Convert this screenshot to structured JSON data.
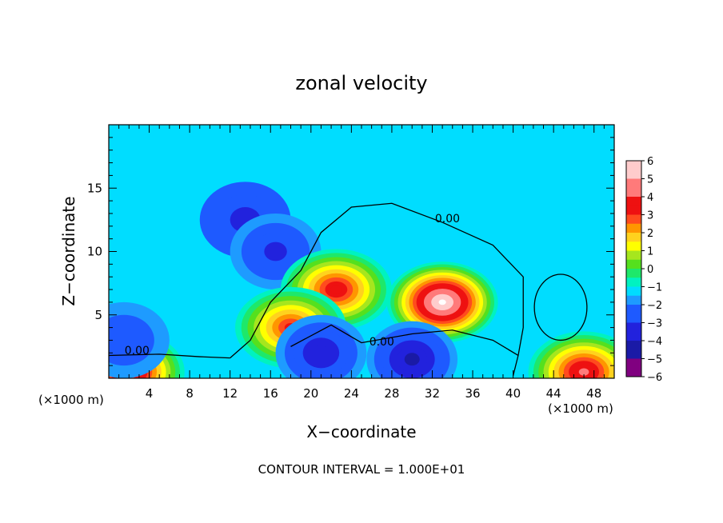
{
  "chart_data": {
    "type": "heatmap",
    "title": "zonal velocity",
    "xlabel": "X−coordinate",
    "ylabel": "Z−coordinate",
    "x_unit_left": "(×1000 m)",
    "x_unit_right": "(×1000 m)",
    "footer": "CONTOUR INTERVAL = 1.000E+01",
    "xlim": [
      0,
      50
    ],
    "ylim": [
      0,
      20
    ],
    "x_ticks": [
      4,
      8,
      12,
      16,
      20,
      24,
      28,
      32,
      36,
      40,
      44,
      48
    ],
    "y_ticks": [
      5,
      10,
      15
    ],
    "colorbar": {
      "vmin": -6,
      "vmax": 6,
      "levels": [
        6,
        5,
        4,
        3,
        2,
        1,
        0,
        -1,
        -2,
        -3,
        -4,
        -5,
        -6
      ],
      "labels": [
        "6",
        "5",
        "4",
        "3",
        "2",
        "1",
        "0",
        "−1",
        "−2",
        "−3",
        "−4",
        "−5",
        "−6"
      ]
    },
    "background_value": -1.5,
    "features": [
      {
        "type": "low",
        "x": 13.5,
        "z": 12.5,
        "value": -3.2
      },
      {
        "type": "low",
        "x": 16.5,
        "z": 10.0,
        "value": -3.5
      },
      {
        "type": "high",
        "x": 22.5,
        "z": 7.0,
        "value": 3.5
      },
      {
        "type": "high",
        "x": 18.0,
        "z": 4.0,
        "value": 3.0
      },
      {
        "type": "high",
        "x": 33.0,
        "z": 6.0,
        "value": 6.0
      },
      {
        "type": "low",
        "x": 30.0,
        "z": 1.5,
        "value": -4.5
      },
      {
        "type": "low",
        "x": 21.0,
        "z": 2.0,
        "value": -4.0
      },
      {
        "type": "high",
        "x": 2.0,
        "z": 0.5,
        "value": 4.5
      },
      {
        "type": "high",
        "x": 47.0,
        "z": 0.5,
        "value": 4.0
      },
      {
        "type": "low",
        "x": 1.5,
        "z": 3.0,
        "value": -3.0
      }
    ],
    "contour_labels": [
      {
        "text": "0.00",
        "x": 33.5,
        "z": 12.3
      },
      {
        "text": "0.00",
        "x": 2.8,
        "z": 1.9
      },
      {
        "text": "0.00",
        "x": 27.0,
        "z": 2.6
      }
    ],
    "grid": false,
    "legend": "right"
  }
}
